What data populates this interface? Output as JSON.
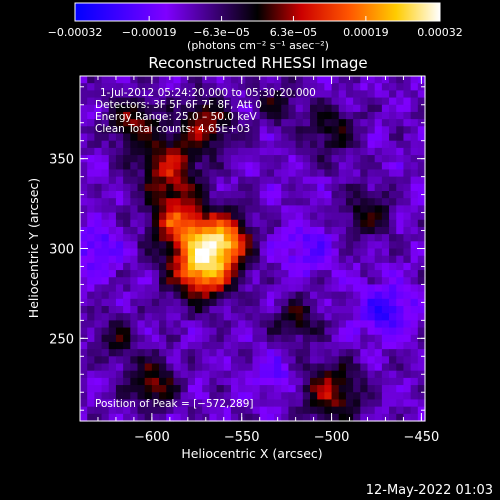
{
  "chart_data": {
    "type": "heatmap",
    "title": "Reconstructed RHESSI Image",
    "xlabel": "Heliocentric X (arcsec)",
    "ylabel": "Heliocentric Y (arcsec)",
    "xlim": [
      -640,
      -448
    ],
    "ylim": [
      204,
      396
    ],
    "xticks": [
      -600,
      -550,
      -500,
      -450
    ],
    "xtick_labels": [
      "−600",
      "−550",
      "−500",
      "−450"
    ],
    "yticks": [
      250,
      300,
      350
    ],
    "ytick_labels": [
      "250",
      "300",
      "350"
    ],
    "colorbar": {
      "range": [
        -0.00032,
        0.00032
      ],
      "ticks": [
        -0.00032,
        -0.00019,
        -6.3e-05,
        6.3e-05,
        0.00019,
        0.00032
      ],
      "tick_labels": [
        "−0.00032",
        "−0.00019",
        "−6.3e−05",
        "6.3e−05",
        "0.00019",
        "0.00032"
      ],
      "units_label": "(photons cm⁻² s⁻¹ asec⁻²)"
    },
    "peak": {
      "x": -572,
      "y": 289
    },
    "annotations": {
      "time_range": "1-Jul-2012 05:24:20.000 to 05:30:20.000",
      "detectors": "Detectors: 3F 5F 6F 7F 8F, Att 0",
      "energy": "Energy Range: 25.0 – 50.0 keV",
      "clean": "Clean    Total counts: 4.65E+03",
      "peak_text": "Position of Peak = [−572,289]"
    },
    "sources": [
      {
        "x": -572,
        "y": 289,
        "sigma": 12,
        "amp": 1.0
      },
      {
        "x": -560,
        "y": 305,
        "sigma": 10,
        "amp": 0.85
      },
      {
        "x": -585,
        "y": 315,
        "sigma": 11,
        "amp": 0.7
      },
      {
        "x": -590,
        "y": 345,
        "sigma": 12,
        "amp": 0.55
      },
      {
        "x": -570,
        "y": 370,
        "sigma": 10,
        "amp": 0.5
      },
      {
        "x": -610,
        "y": 370,
        "sigma": 10,
        "amp": 0.45
      },
      {
        "x": -600,
        "y": 225,
        "sigma": 10,
        "amp": 0.45
      },
      {
        "x": -500,
        "y": 220,
        "sigma": 12,
        "amp": 0.5
      },
      {
        "x": -520,
        "y": 260,
        "sigma": 9,
        "amp": 0.35
      },
      {
        "x": -480,
        "y": 320,
        "sigma": 10,
        "amp": 0.35
      },
      {
        "x": -500,
        "y": 365,
        "sigma": 10,
        "amp": 0.35
      },
      {
        "x": -620,
        "y": 250,
        "sigma": 8,
        "amp": 0.3
      },
      {
        "x": -530,
        "y": 380,
        "sigma": 8,
        "amp": 0.3
      },
      {
        "x": -630,
        "y": 300,
        "sigma": 9,
        "amp": -0.3
      },
      {
        "x": -470,
        "y": 265,
        "sigma": 10,
        "amp": -0.4
      },
      {
        "x": -515,
        "y": 300,
        "sigma": 10,
        "amp": -0.25
      },
      {
        "x": -530,
        "y": 230,
        "sigma": 8,
        "amp": -0.2
      }
    ]
  },
  "footer": {
    "date": "12-May-2022 01:03"
  }
}
